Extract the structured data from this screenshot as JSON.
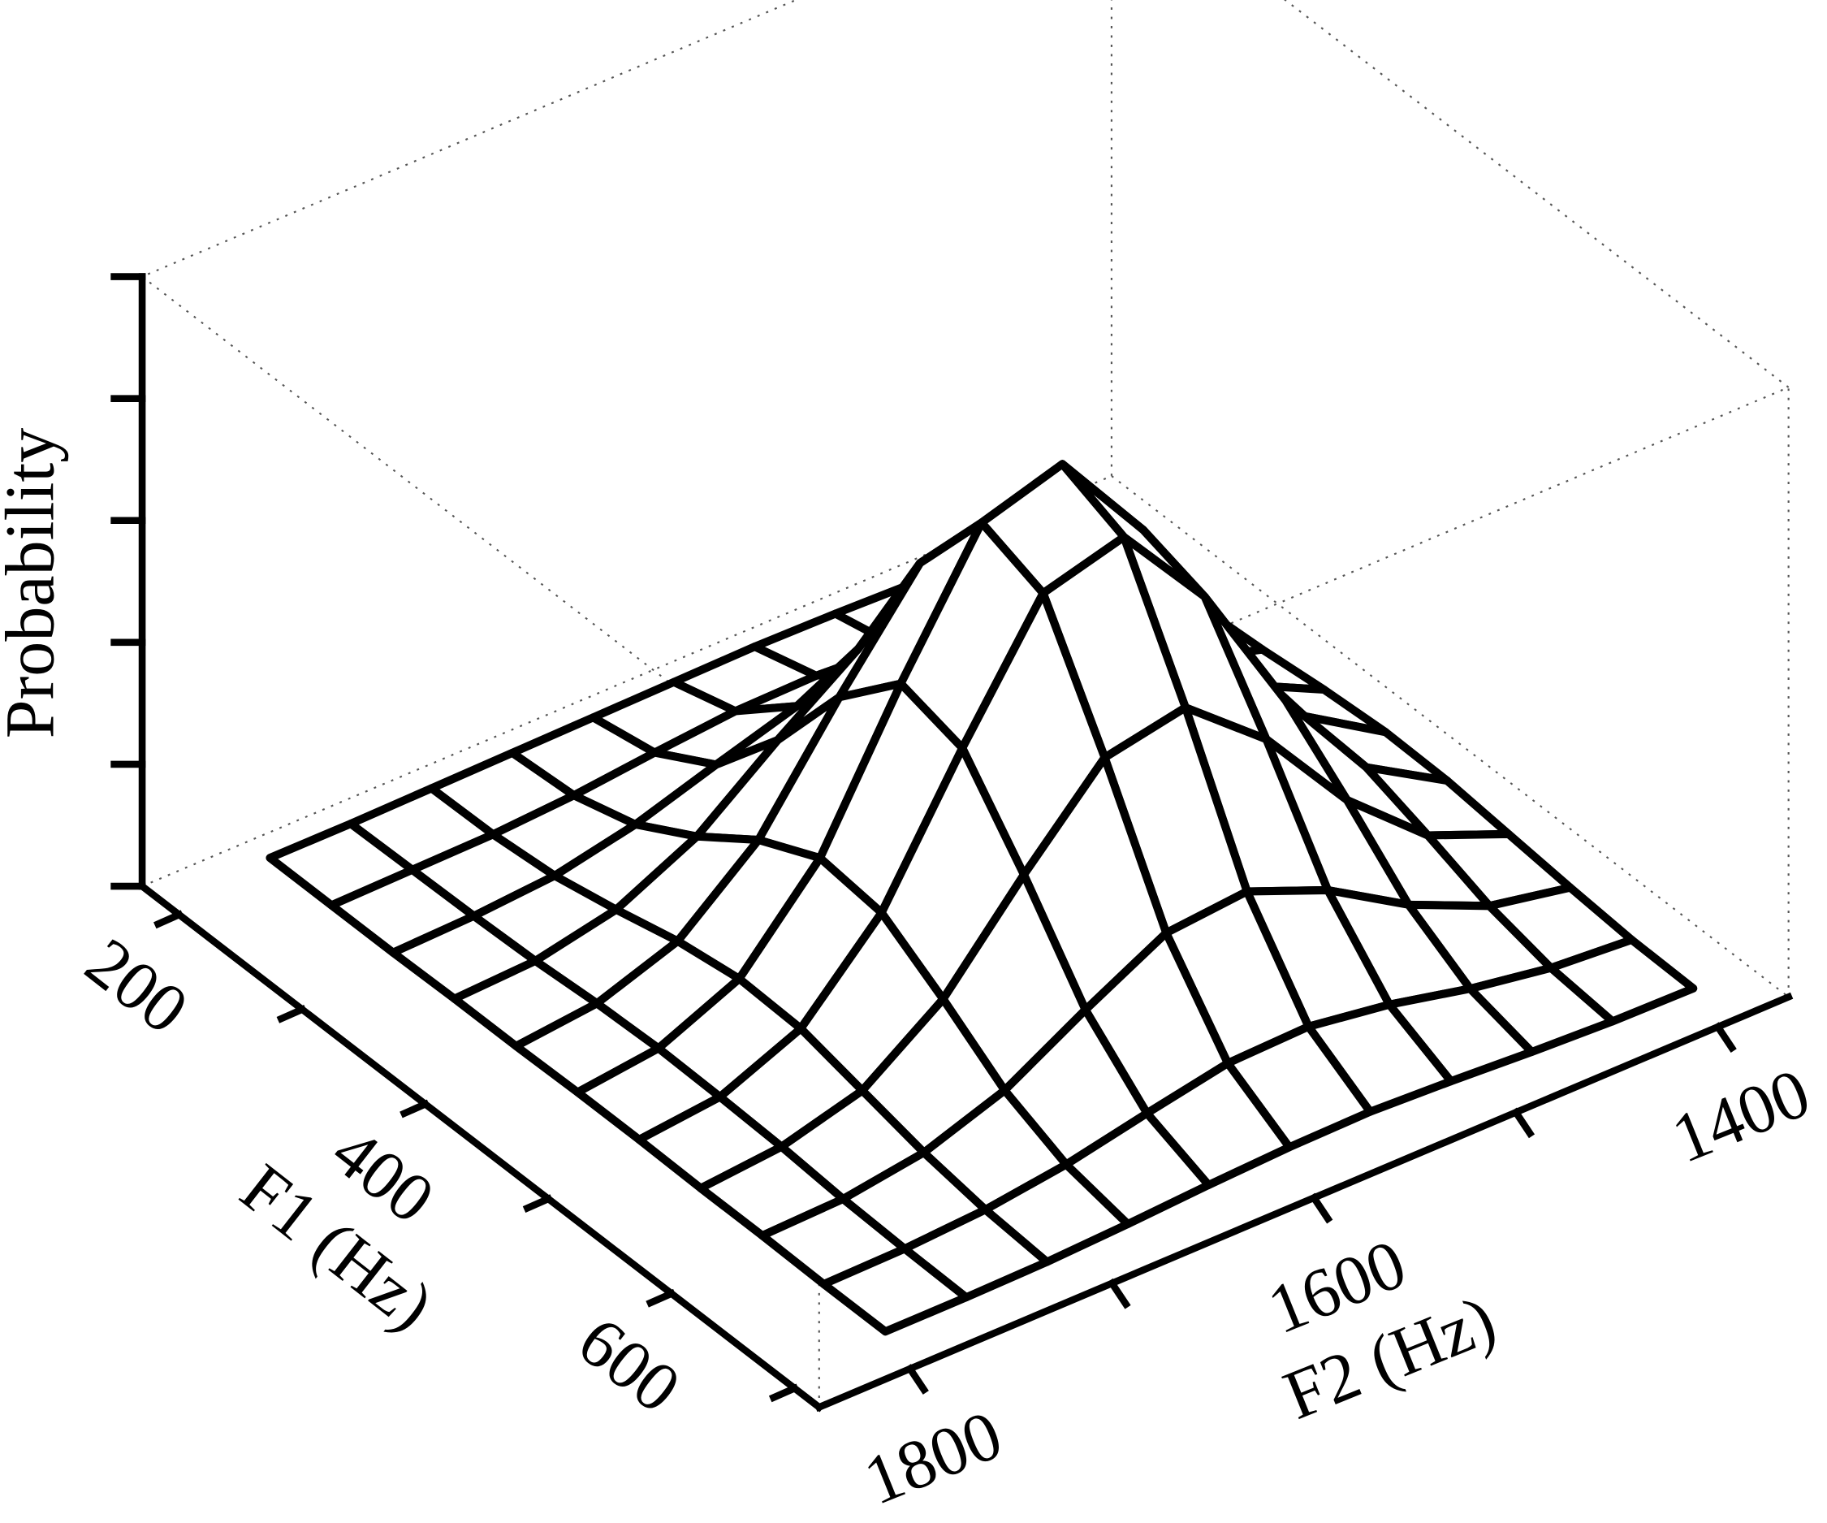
{
  "chart_data": {
    "type": "surface",
    "x_label": "F1 (Hz)",
    "y_label": "F2 (Hz)",
    "z_label": "Probability",
    "x": [
      200,
      250,
      300,
      350,
      400,
      450,
      500,
      550,
      600,
      650,
      700
    ],
    "y": [
      1800,
      1760,
      1720,
      1680,
      1640,
      1600,
      1560,
      1520,
      1480,
      1440,
      1400
    ],
    "z": [
      [
        0.15,
        0.15,
        0.16,
        0.17,
        0.18,
        0.19,
        0.2,
        0.19,
        0.17,
        0.16,
        0.15
      ],
      [
        0.15,
        0.16,
        0.17,
        0.21,
        0.28,
        0.34,
        0.35,
        0.31,
        0.24,
        0.18,
        0.16
      ],
      [
        0.15,
        0.17,
        0.22,
        0.36,
        0.57,
        0.77,
        0.81,
        0.65,
        0.43,
        0.26,
        0.18
      ],
      [
        0.16,
        0.19,
        0.33,
        0.65,
        1.16,
        1.63,
        1.71,
        1.35,
        0.81,
        0.41,
        0.22
      ],
      [
        0.16,
        0.23,
        0.46,
        1.01,
        1.9,
        2.72,
        2.87,
        2.23,
        1.3,
        0.6,
        0.28
      ],
      [
        0.17,
        0.25,
        0.54,
        1.25,
        2.4,
        3.44,
        3.64,
        2.82,
        1.62,
        0.73,
        0.32
      ],
      [
        0.17,
        0.24,
        0.52,
        1.19,
        2.26,
        3.25,
        3.43,
        2.66,
        1.53,
        0.7,
        0.31
      ],
      [
        0.16,
        0.22,
        0.4,
        0.87,
        1.61,
        2.29,
        2.42,
        1.88,
        1.1,
        0.53,
        0.26
      ],
      [
        0.16,
        0.18,
        0.28,
        0.51,
        0.89,
        1.24,
        1.3,
        1.03,
        0.63,
        0.34,
        0.21
      ],
      [
        0.15,
        0.16,
        0.2,
        0.29,
        0.43,
        0.56,
        0.58,
        0.48,
        0.33,
        0.22,
        0.17
      ],
      [
        0.15,
        0.15,
        0.16,
        0.19,
        0.23,
        0.26,
        0.27,
        0.24,
        0.2,
        0.17,
        0.16
      ]
    ],
    "xlim": [
      170,
      720
    ],
    "ylim": [
      1845,
      1365
    ],
    "zlim": [
      0,
      5
    ],
    "xticks": [
      200,
      {
        "value": 300,
        "label": null
      },
      400,
      {
        "value": 500,
        "label": null
      },
      600,
      {
        "value": 700,
        "label": null
      }
    ],
    "yticks": [
      1800,
      {
        "value": 1700,
        "label": null
      },
      1600,
      {
        "value": 1500,
        "label": null
      },
      1400
    ],
    "zticks": [
      {
        "value": 0,
        "label": null
      },
      {
        "value": 1,
        "label": null
      },
      {
        "value": 2,
        "label": null
      },
      {
        "value": 3,
        "label": null
      },
      {
        "value": 4,
        "label": null
      },
      {
        "value": 5,
        "label": null
      }
    ],
    "color": "#000000",
    "fill": "#ffffff"
  }
}
